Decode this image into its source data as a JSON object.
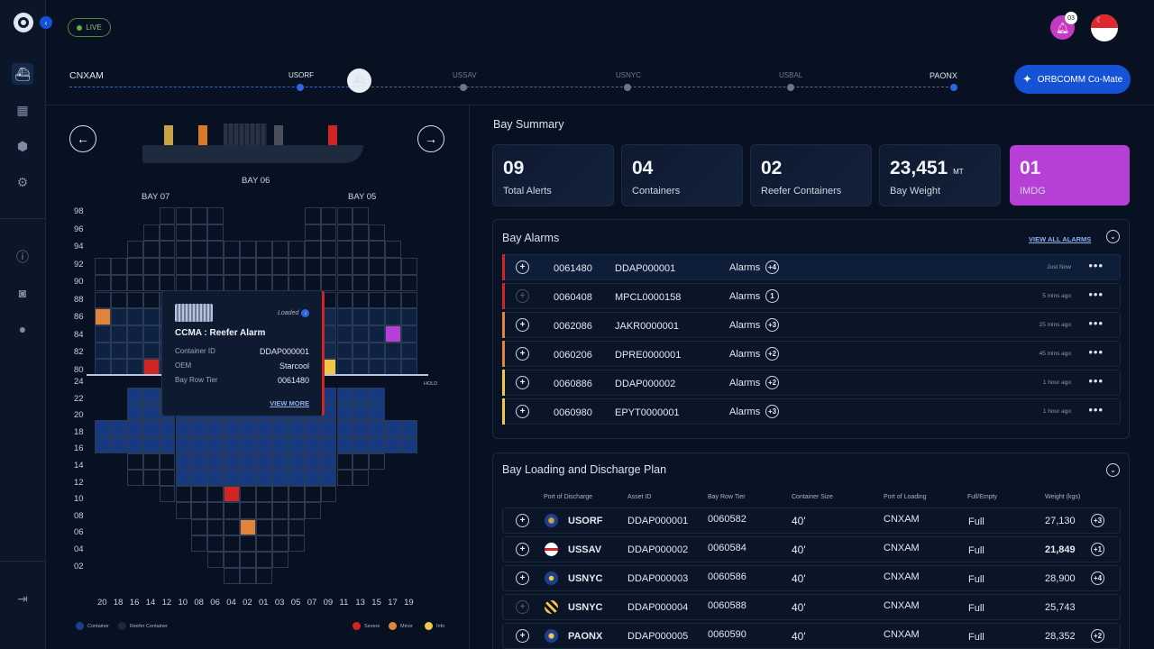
{
  "header": {
    "live": "LIVE",
    "notifications": "03",
    "comate": "ORBCOMM Co-Mate"
  },
  "route": {
    "origin": "CNXAM",
    "stops": [
      "USORF",
      "USSAV",
      "USNYC",
      "USBAL"
    ],
    "destination": "PAONX"
  },
  "bay_view": {
    "current_bay": "BAY 06",
    "left_bay": "BAY 07",
    "right_bay": "BAY 05",
    "hold_label": "HOLD",
    "y_labels_deck": [
      "98",
      "96",
      "94",
      "92",
      "90",
      "88",
      "86",
      "84",
      "82",
      "80"
    ],
    "y_labels_hold": [
      "24",
      "22",
      "20",
      "18",
      "16",
      "14",
      "12",
      "10",
      "08",
      "06",
      "04",
      "02"
    ],
    "x_labels": [
      "20",
      "18",
      "16",
      "14",
      "12",
      "10",
      "08",
      "06",
      "04",
      "02",
      "01",
      "03",
      "05",
      "07",
      "09",
      "11",
      "13",
      "15",
      "17",
      "19"
    ]
  },
  "popup": {
    "status": "Loaded",
    "title": "CCMA : Reefer Alarm",
    "fields": [
      {
        "label": "Container ID",
        "value": "DDAP000001"
      },
      {
        "label": "OEM",
        "value": "Starcool"
      },
      {
        "label": "Bay Row Tier",
        "value": "0061480"
      }
    ],
    "view_more": "VIEW MORE"
  },
  "legend": [
    "Container",
    "Reefer Container",
    "Severe",
    "Minor",
    "Info"
  ],
  "colors": {
    "severe": "#d02425",
    "minor": "#e0843b",
    "info": "#f0c74b",
    "container": "#1c3f8f",
    "reefer": "#1d2940",
    "imdg": "#b640d6",
    "accent": "#1553d6"
  },
  "summary": {
    "title": "Bay Summary",
    "stats": [
      {
        "value": "09",
        "label": "Total Alerts"
      },
      {
        "value": "04",
        "label": "Containers"
      },
      {
        "value": "02",
        "label": "Reefer Containers"
      },
      {
        "value": "23,451",
        "unit": "MT",
        "label": "Bay Weight"
      },
      {
        "value": "01",
        "label": "IMDG"
      }
    ]
  },
  "alarms": {
    "title": "Bay Alarms",
    "view_all": "VIEW ALL ALARMS",
    "rows": [
      {
        "id": "0061480",
        "container": "DDAP000001",
        "alarms": "Alarms",
        "count": "+4",
        "time": "Just Now",
        "severity": "severe"
      },
      {
        "id": "0060408",
        "container": "MPCL0000158",
        "alarms": "Alarms",
        "count": "1",
        "time": "5 mins ago",
        "severity": "severe"
      },
      {
        "id": "0062086",
        "container": "JAKR0000001",
        "alarms": "Alarms",
        "count": "+3",
        "time": "25 mins ago",
        "severity": "minor"
      },
      {
        "id": "0060206",
        "container": "DPRE0000001",
        "alarms": "Alarms",
        "count": "+2",
        "time": "45 mins ago",
        "severity": "minor"
      },
      {
        "id": "0060886",
        "container": "DDAP000002",
        "alarms": "Alarms",
        "count": "+2",
        "time": "1 hour ago",
        "severity": "info"
      },
      {
        "id": "0060980",
        "container": "EPYT0000001",
        "alarms": "Alarms",
        "count": "+3",
        "time": "1 hour ago",
        "severity": "info"
      }
    ]
  },
  "plan": {
    "title": "Bay Loading and Discharge Plan",
    "columns": [
      "Port of Discharge",
      "Asset ID",
      "Bay Row Tier",
      "Container Size",
      "Port of Loading",
      "Full/Empty",
      "Weight (kgs)"
    ],
    "rows": [
      {
        "port": "USORF",
        "asset": "DDAP000001",
        "brt": "0060582",
        "size": "40'",
        "loading": "CNXAM",
        "full": "Full",
        "weight": "27,130",
        "extra": "+3",
        "flag": "flag-icon-usorf"
      },
      {
        "port": "USSAV",
        "asset": "DDAP000002",
        "brt": "0060584",
        "size": "40'",
        "loading": "CNXAM",
        "full": "Full",
        "weight": "21,849",
        "extra": "+1",
        "flag": "flag-icon-ussav"
      },
      {
        "port": "USNYC",
        "asset": "DDAP000003",
        "brt": "0060586",
        "size": "40'",
        "loading": "CNXAM",
        "full": "Full",
        "weight": "28,900",
        "extra": "+4",
        "flag": "flag-icon-usnyc"
      },
      {
        "port": "USNYC",
        "asset": "DDAP000004",
        "brt": "0060588",
        "size": "40'",
        "loading": "CNXAM",
        "full": "Full",
        "weight": "25,743",
        "extra": "",
        "flag": "flag-icon-usbal"
      },
      {
        "port": "PAONX",
        "asset": "DDAP000005",
        "brt": "0060590",
        "size": "40'",
        "loading": "CNXAM",
        "full": "Full",
        "weight": "28,352",
        "extra": "+2",
        "flag": "flag-icon-paonx"
      }
    ]
  }
}
